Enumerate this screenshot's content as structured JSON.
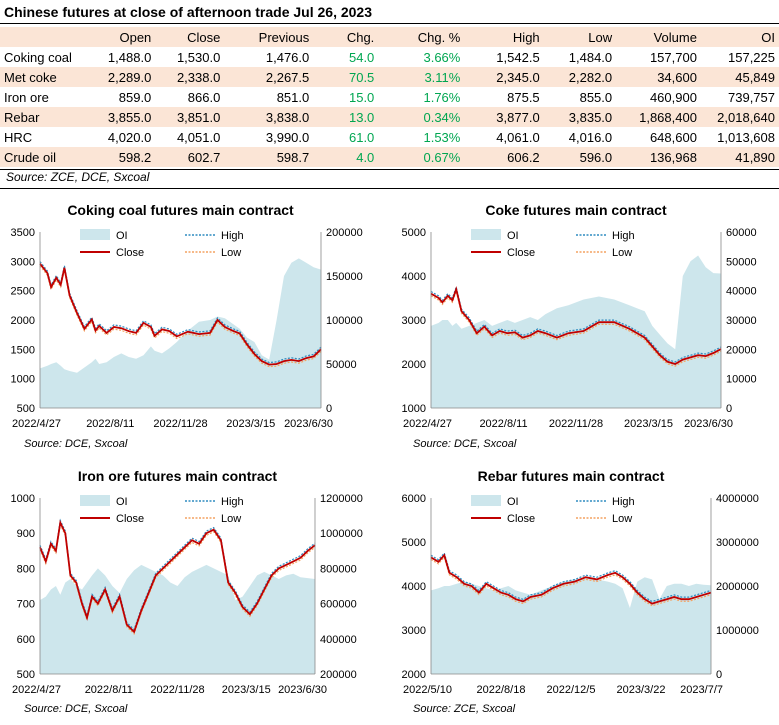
{
  "table": {
    "title": "Chinese futures at close of afternoon trade Jul 26, 2023",
    "columns": [
      "",
      "Open",
      "Close",
      "Previous",
      "Chg.",
      "Chg. %",
      "High",
      "Low",
      "Volume",
      "OI"
    ],
    "rows": [
      [
        "Coking coal",
        "1,488.0",
        "1,530.0",
        "1,476.0",
        "54.0",
        "3.66%",
        "1,542.5",
        "1,484.0",
        "157,700",
        "157,225"
      ],
      [
        "Met coke",
        "2,289.0",
        "2,338.0",
        "2,267.5",
        "70.5",
        "3.11%",
        "2,345.0",
        "2,282.0",
        "34,600",
        "45,849"
      ],
      [
        "Iron ore",
        "859.0",
        "866.0",
        "851.0",
        "15.0",
        "1.76%",
        "875.5",
        "855.0",
        "460,900",
        "739,757"
      ],
      [
        "Rebar",
        "3,855.0",
        "3,851.0",
        "3,838.0",
        "13.0",
        "0.34%",
        "3,877.0",
        "3,835.0",
        "1,868,400",
        "2,018,640"
      ],
      [
        "HRC",
        "4,020.0",
        "4,051.0",
        "3,990.0",
        "61.0",
        "1.53%",
        "4,061.0",
        "4,016.0",
        "648,600",
        "1,013,608"
      ],
      [
        "Crude oil",
        "598.2",
        "602.7",
        "598.7",
        "4.0",
        "0.67%",
        "606.2",
        "596.0",
        "136,968",
        "41,890"
      ]
    ],
    "source": "Source: ZCE, DCE, Sxcoal",
    "positive_color": "#00a651",
    "stripe_color": "#fbe5d6"
  },
  "colors": {
    "oi": "#cde6ec",
    "close": "#c00000",
    "high": "#2e8bc0",
    "low": "#f4a261"
  },
  "chart_data": [
    {
      "type": "line",
      "title": "Coking coal futures main contract",
      "legend": [
        "OI",
        "Close",
        "High",
        "Low"
      ],
      "x_ticks": [
        "2022/4/27",
        "2022/8/11",
        "2022/11/28",
        "2023/3/15",
        "2023/6/30"
      ],
      "y_left": [
        500,
        3500
      ],
      "y_left_ticks": [
        500,
        1000,
        1500,
        2000,
        2500,
        3000,
        3500
      ],
      "y_right": [
        0,
        200000
      ],
      "y_right_ticks": [
        0,
        50000,
        100000,
        150000,
        200000
      ],
      "x": [
        0,
        10,
        15,
        22,
        28,
        33,
        40,
        50,
        60,
        70,
        75,
        80,
        90,
        100,
        110,
        120,
        130,
        140,
        150,
        155,
        165,
        175,
        185,
        200,
        215,
        230,
        240,
        250,
        260,
        270,
        280,
        290,
        300,
        310,
        320,
        330,
        340,
        350,
        360,
        370,
        380
      ],
      "close": [
        2960,
        2800,
        2560,
        2720,
        2600,
        2890,
        2420,
        2120,
        1850,
        2010,
        1820,
        1900,
        1780,
        1880,
        1860,
        1810,
        1780,
        1950,
        1880,
        1730,
        1840,
        1810,
        1720,
        1800,
        1760,
        1780,
        2000,
        1880,
        1820,
        1770,
        1580,
        1420,
        1300,
        1240,
        1250,
        1300,
        1320,
        1300,
        1350,
        1380,
        1500
      ],
      "oi": [
        45000,
        48000,
        50000,
        52000,
        48000,
        44000,
        42000,
        40000,
        46000,
        52000,
        56000,
        50000,
        52000,
        58000,
        62000,
        58000,
        56000,
        60000,
        70000,
        65000,
        62000,
        68000,
        75000,
        88000,
        98000,
        100000,
        104000,
        102000,
        96000,
        90000,
        80000,
        75000,
        60000,
        55000,
        100000,
        150000,
        165000,
        170000,
        165000,
        160000,
        157225
      ]
    },
    {
      "type": "line",
      "title": "Coke futures main contract",
      "legend": [
        "OI",
        "Close",
        "High",
        "Low"
      ],
      "x_ticks": [
        "2022/4/27",
        "2022/8/11",
        "2022/11/28",
        "2023/3/15",
        "2023/6/30"
      ],
      "y_left": [
        1000,
        5000
      ],
      "y_left_ticks": [
        1000,
        2000,
        3000,
        4000,
        5000
      ],
      "y_right": [
        0,
        60000
      ],
      "y_right_ticks": [
        0,
        10000,
        20000,
        30000,
        40000,
        50000,
        60000
      ],
      "x": [
        0,
        10,
        15,
        22,
        28,
        33,
        40,
        50,
        60,
        70,
        80,
        90,
        100,
        110,
        120,
        130,
        140,
        150,
        165,
        180,
        200,
        220,
        240,
        260,
        280,
        290,
        300,
        310,
        320,
        330,
        340,
        350,
        360,
        370,
        380
      ],
      "close": [
        3600,
        3500,
        3400,
        3550,
        3450,
        3700,
        3200,
        3000,
        2700,
        2850,
        2650,
        2750,
        2700,
        2720,
        2600,
        2650,
        2750,
        2700,
        2600,
        2700,
        2750,
        2950,
        2950,
        2800,
        2600,
        2400,
        2200,
        2050,
        2000,
        2100,
        2150,
        2200,
        2180,
        2250,
        2338
      ],
      "oi": [
        28000,
        29000,
        30000,
        30000,
        28000,
        29000,
        27000,
        28000,
        29000,
        30000,
        28000,
        29000,
        30000,
        29000,
        30000,
        31000,
        30000,
        32000,
        34000,
        35000,
        37000,
        38000,
        37000,
        35000,
        33000,
        28000,
        25000,
        22000,
        20000,
        45000,
        50000,
        52000,
        48000,
        46000,
        45849
      ]
    },
    {
      "type": "line",
      "title": "Iron ore futures main contract",
      "legend": [
        "OI",
        "Close",
        "High",
        "Low"
      ],
      "x_ticks": [
        "2022/4/27",
        "2022/8/11",
        "2022/11/28",
        "2023/3/15",
        "2023/6/30"
      ],
      "y_left": [
        500,
        1000
      ],
      "y_left_ticks": [
        500,
        600,
        700,
        800,
        900,
        1000
      ],
      "y_right": [
        200000,
        1200000
      ],
      "y_right_ticks": [
        200000,
        400000,
        600000,
        800000,
        1000000,
        1200000
      ],
      "x": [
        0,
        8,
        15,
        22,
        28,
        35,
        42,
        50,
        58,
        65,
        72,
        80,
        90,
        100,
        110,
        120,
        130,
        140,
        150,
        160,
        170,
        180,
        190,
        200,
        210,
        220,
        230,
        240,
        250,
        260,
        270,
        280,
        290,
        300,
        310,
        320,
        330,
        340,
        350,
        360,
        370,
        380
      ],
      "close": [
        860,
        820,
        870,
        850,
        930,
        900,
        780,
        760,
        700,
        660,
        720,
        700,
        740,
        680,
        720,
        640,
        620,
        680,
        730,
        780,
        800,
        820,
        840,
        860,
        880,
        870,
        900,
        910,
        880,
        760,
        730,
        690,
        670,
        700,
        740,
        780,
        800,
        810,
        820,
        830,
        850,
        866
      ],
      "oi": [
        620000,
        640000,
        680000,
        700000,
        650000,
        720000,
        740000,
        700000,
        680000,
        720000,
        760000,
        800000,
        760000,
        700000,
        660000,
        740000,
        790000,
        820000,
        800000,
        780000,
        760000,
        720000,
        700000,
        750000,
        780000,
        800000,
        820000,
        800000,
        780000,
        760000,
        620000,
        640000,
        700000,
        760000,
        780000,
        760000,
        740000,
        760000,
        770000,
        750000,
        745000,
        739757
      ]
    },
    {
      "type": "line",
      "title": "Rebar futures main contract",
      "legend": [
        "OI",
        "Close",
        "High",
        "Low"
      ],
      "x_ticks": [
        "2022/5/10",
        "2022/8/18",
        "2022/12/5",
        "2023/3/22",
        "2023/7/7"
      ],
      "y_left": [
        2000,
        6000
      ],
      "y_left_ticks": [
        2000,
        3000,
        4000,
        5000,
        6000
      ],
      "y_right": [
        0,
        4000000
      ],
      "y_right_ticks": [
        0,
        1000000,
        2000000,
        3000000,
        4000000
      ],
      "x": [
        0,
        10,
        18,
        25,
        35,
        45,
        55,
        65,
        75,
        85,
        95,
        105,
        115,
        125,
        135,
        150,
        165,
        180,
        195,
        210,
        225,
        240,
        250,
        260,
        270,
        280,
        290,
        300,
        310,
        320,
        330,
        340,
        350,
        360,
        370,
        380
      ],
      "close": [
        4650,
        4550,
        4700,
        4300,
        4200,
        4050,
        4000,
        3850,
        4050,
        3950,
        3850,
        3800,
        3700,
        3650,
        3750,
        3800,
        3950,
        4050,
        4100,
        4200,
        4150,
        4250,
        4300,
        4200,
        4050,
        3850,
        3700,
        3600,
        3650,
        3700,
        3750,
        3700,
        3700,
        3750,
        3800,
        3851
      ],
      "oi": [
        1900000,
        1950000,
        2000000,
        2000000,
        2050000,
        2100000,
        2050000,
        2000000,
        1950000,
        1900000,
        1950000,
        2000000,
        1900000,
        1850000,
        1800000,
        1900000,
        2000000,
        2100000,
        2150000,
        2200000,
        2150000,
        2100000,
        2050000,
        1950000,
        1500000,
        2100000,
        2200000,
        2150000,
        1700000,
        2000000,
        2050000,
        2050000,
        2000000,
        2050000,
        2030000,
        2018640
      ]
    }
  ],
  "chart_sources": [
    "Source: DCE, Sxcoal",
    "Source: DCE, Sxcoal",
    "Source: DCE, Sxcoal",
    "Source: ZCE, Sxcoal"
  ]
}
